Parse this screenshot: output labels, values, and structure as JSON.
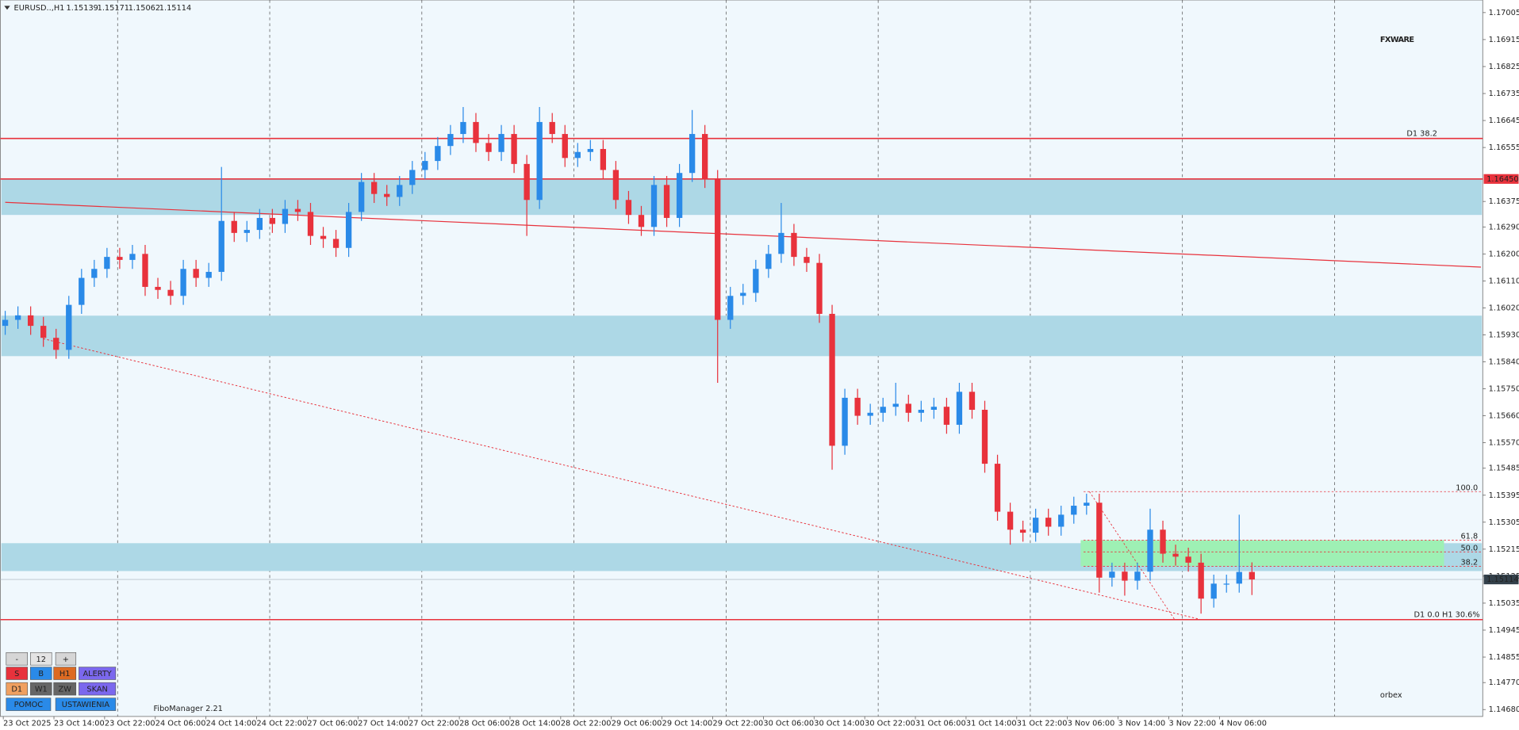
{
  "chart_data": {
    "type": "candlestick",
    "header": {
      "symbol": "EURUSD..,H1",
      "ohlc": [
        1.15139,
        1.15171,
        1.15062,
        1.15114
      ]
    },
    "ylim": [
      1.14657,
      1.17047
    ],
    "yticks": [
      1.17005,
      1.16915,
      1.16825,
      1.16735,
      1.16645,
      1.16555,
      1.16375,
      {
        "value": 1.1629,
        "label": "1.16290"
      },
      {
        "value": 1.162,
        "label": "1.16200"
      },
      {
        "value": 1.1611,
        "label": "1.16110"
      },
      {
        "value": 1.1602,
        "label": "1.16020"
      },
      {
        "value": 1.1593,
        "label": "1.15930"
      },
      {
        "value": 1.1584,
        "label": "1.15840"
      },
      {
        "value": 1.1575,
        "label": "1.15750"
      },
      {
        "value": 1.1566,
        "label": "1.15660"
      },
      {
        "value": 1.1557,
        "label": "1.15570"
      },
      1.15485,
      1.15395,
      1.15305,
      1.15215,
      1.15125,
      1.15035,
      1.14945,
      1.14855,
      {
        "value": 1.1477,
        "label": "1.14770"
      },
      {
        "value": 1.1468,
        "label": "1.14680"
      }
    ],
    "xtick_labels": [
      "23 Oct 2025",
      "23 Oct 14:00",
      "23 Oct 22:00",
      "24 Oct 06:00",
      "24 Oct 14:00",
      "24 Oct 22:00",
      "27 Oct 06:00",
      "27 Oct 14:00",
      "27 Oct 22:00",
      "28 Oct 06:00",
      "28 Oct 14:00",
      "28 Oct 22:00",
      "29 Oct 06:00",
      "29 Oct 14:00",
      "29 Oct 22:00",
      "30 Oct 06:00",
      "30 Oct 14:00",
      "30 Oct 22:00",
      "31 Oct 06:00",
      "31 Oct 14:00",
      "31 Oct 22:00",
      "3 Nov 06:00",
      "3 Nov 14:00",
      "3 Nov 22:00",
      "4 Nov 06:00"
    ],
    "bull_color": "#2a8ae8",
    "bear_color": "#e8323c",
    "candles": [
      [
        1.1596,
        1.1601,
        1.1593,
        1.1598
      ],
      [
        1.1598,
        1.16025,
        1.1595,
        1.15995
      ],
      [
        1.15995,
        1.16025,
        1.1593,
        1.1596
      ],
      [
        1.1596,
        1.1599,
        1.1589,
        1.1592
      ],
      [
        1.1592,
        1.1595,
        1.1585,
        1.1588
      ],
      [
        1.1588,
        1.1606,
        1.1585,
        1.1603
      ],
      [
        1.1603,
        1.1615,
        1.16,
        1.1612
      ],
      [
        1.1612,
        1.1618,
        1.1609,
        1.1615
      ],
      [
        1.1615,
        1.1622,
        1.1612,
        1.1619
      ],
      [
        1.1619,
        1.1622,
        1.1615,
        1.1618
      ],
      [
        1.1618,
        1.1623,
        1.1615,
        1.162
      ],
      [
        1.162,
        1.1623,
        1.1606,
        1.1609
      ],
      [
        1.1609,
        1.1612,
        1.1605,
        1.1608
      ],
      [
        1.1608,
        1.1611,
        1.1603,
        1.1606
      ],
      [
        1.1606,
        1.1618,
        1.1603,
        1.1615
      ],
      [
        1.1615,
        1.1618,
        1.1609,
        1.1612
      ],
      [
        1.1612,
        1.1617,
        1.1609,
        1.1614
      ],
      [
        1.1614,
        1.1649,
        1.1611,
        1.1631
      ],
      [
        1.1631,
        1.1634,
        1.1624,
        1.1627
      ],
      [
        1.1627,
        1.1631,
        1.1624,
        1.1628
      ],
      [
        1.1628,
        1.1635,
        1.1625,
        1.1632
      ],
      [
        1.1632,
        1.1635,
        1.1627,
        1.163
      ],
      [
        1.163,
        1.1638,
        1.1627,
        1.1635
      ],
      [
        1.1635,
        1.1638,
        1.1631,
        1.1634
      ],
      [
        1.1634,
        1.1637,
        1.1623,
        1.1626
      ],
      [
        1.1626,
        1.1629,
        1.1622,
        1.1625
      ],
      [
        1.1625,
        1.1628,
        1.1619,
        1.1622
      ],
      [
        1.1622,
        1.1637,
        1.1619,
        1.1634
      ],
      [
        1.1634,
        1.1647,
        1.1631,
        1.1644
      ],
      [
        1.1644,
        1.1647,
        1.1637,
        1.164
      ],
      [
        1.164,
        1.1643,
        1.1636,
        1.1639
      ],
      [
        1.1639,
        1.1646,
        1.1636,
        1.1643
      ],
      [
        1.1643,
        1.1651,
        1.164,
        1.1648
      ],
      [
        1.1648,
        1.1654,
        1.1645,
        1.1651
      ],
      [
        1.1651,
        1.1659,
        1.1648,
        1.1656
      ],
      [
        1.1656,
        1.1663,
        1.1653,
        1.166
      ],
      [
        1.166,
        1.1669,
        1.1657,
        1.1664
      ],
      [
        1.1664,
        1.1667,
        1.1654,
        1.1657
      ],
      [
        1.1657,
        1.166,
        1.1651,
        1.1654
      ],
      [
        1.1654,
        1.1663,
        1.1651,
        1.166
      ],
      [
        1.166,
        1.1663,
        1.1647,
        1.165
      ],
      [
        1.165,
        1.1653,
        1.1626,
        1.1638
      ],
      [
        1.1638,
        1.1669,
        1.1635,
        1.1664
      ],
      [
        1.1664,
        1.1667,
        1.1657,
        1.166
      ],
      [
        1.166,
        1.1663,
        1.1649,
        1.1652
      ],
      [
        1.1652,
        1.1657,
        1.1649,
        1.1654
      ],
      [
        1.1654,
        1.1658,
        1.1651,
        1.1655
      ],
      [
        1.1655,
        1.1658,
        1.1645,
        1.1648
      ],
      [
        1.1648,
        1.1651,
        1.1635,
        1.1638
      ],
      [
        1.1638,
        1.1641,
        1.163,
        1.1633
      ],
      [
        1.1633,
        1.1636,
        1.1626,
        1.1629
      ],
      [
        1.1629,
        1.1646,
        1.1626,
        1.1643
      ],
      [
        1.1643,
        1.1646,
        1.1629,
        1.1632
      ],
      [
        1.1632,
        1.165,
        1.1629,
        1.1647
      ],
      [
        1.1647,
        1.1668,
        1.1644,
        1.166
      ],
      [
        1.166,
        1.1663,
        1.1642,
        1.1645
      ],
      [
        1.1645,
        1.1648,
        1.1577,
        1.1598
      ],
      [
        1.1598,
        1.1609,
        1.1595,
        1.1606
      ],
      [
        1.1606,
        1.161,
        1.1603,
        1.1607
      ],
      [
        1.1607,
        1.1618,
        1.1604,
        1.1615
      ],
      [
        1.1615,
        1.1623,
        1.1612,
        1.162
      ],
      [
        1.162,
        1.1637,
        1.1617,
        1.1627
      ],
      [
        1.1627,
        1.163,
        1.1616,
        1.1619
      ],
      [
        1.1619,
        1.1622,
        1.1614,
        1.1617
      ],
      [
        1.1617,
        1.162,
        1.1597,
        1.16
      ],
      [
        1.16,
        1.1603,
        1.1548,
        1.1556
      ],
      [
        1.1556,
        1.1575,
        1.1553,
        1.1572
      ],
      [
        1.1572,
        1.1575,
        1.1563,
        1.1566
      ],
      [
        1.1566,
        1.157,
        1.1563,
        1.1567
      ],
      [
        1.1567,
        1.1572,
        1.1564,
        1.1569
      ],
      [
        1.1569,
        1.1577,
        1.1566,
        1.157
      ],
      [
        1.157,
        1.1573,
        1.1564,
        1.1567
      ],
      [
        1.1567,
        1.1571,
        1.1564,
        1.1568
      ],
      [
        1.1568,
        1.1572,
        1.1565,
        1.1569
      ],
      [
        1.1569,
        1.1572,
        1.156,
        1.1563
      ],
      [
        1.1563,
        1.1577,
        1.156,
        1.1574
      ],
      [
        1.1574,
        1.1577,
        1.1565,
        1.1568
      ],
      [
        1.1568,
        1.1571,
        1.1547,
        1.155
      ],
      [
        1.155,
        1.1553,
        1.1531,
        1.1534
      ],
      [
        1.1534,
        1.1537,
        1.1523,
        1.1528
      ],
      [
        1.1528,
        1.1531,
        1.1524,
        1.1527
      ],
      [
        1.1527,
        1.1535,
        1.1524,
        1.1532
      ],
      [
        1.1532,
        1.1535,
        1.1526,
        1.1529
      ],
      [
        1.1529,
        1.1536,
        1.1526,
        1.1533
      ],
      [
        1.1533,
        1.1539,
        1.153,
        1.1536
      ],
      [
        1.1536,
        1.154,
        1.1533,
        1.1537
      ],
      [
        1.1537,
        1.154,
        1.1507,
        1.1512
      ],
      [
        1.1512,
        1.1517,
        1.1509,
        1.1514
      ],
      [
        1.1514,
        1.1517,
        1.1506,
        1.1511
      ],
      [
        1.1511,
        1.1517,
        1.1508,
        1.1514
      ],
      [
        1.1514,
        1.1535,
        1.1511,
        1.1528
      ],
      [
        1.1528,
        1.1531,
        1.1517,
        1.152
      ],
      [
        1.152,
        1.1523,
        1.1516,
        1.1519
      ],
      [
        1.1519,
        1.1522,
        1.1514,
        1.1517
      ],
      [
        1.1517,
        1.152,
        1.15,
        1.1505
      ],
      [
        1.1505,
        1.1513,
        1.1502,
        1.151
      ],
      [
        1.151,
        1.1513,
        1.1507,
        1.151
      ],
      [
        1.151,
        1.1533,
        1.1507,
        1.15139
      ],
      [
        1.15139,
        1.15171,
        1.15062,
        1.15114
      ]
    ],
    "zones": [
      [
        1.1633,
        1.1645
      ],
      [
        1.15859,
        1.15994
      ],
      [
        1.15142,
        1.15235
      ]
    ],
    "zone_color": "#add8e6",
    "levels": [
      {
        "value": 1.16585,
        "label": "D1 38.2"
      },
      {
        "value": 1.1498,
        "label": "D1 0.0   H1 30.6%"
      }
    ],
    "price_tag": {
      "value": 1.1645,
      "label": "1.16450"
    },
    "level_color": "#e8323c",
    "bid": 1.15114,
    "trendlines": [
      {
        "x": [
          0,
          116
        ],
        "y": [
          1.16372,
          1.16156
        ],
        "dash": false
      },
      {
        "x": [
          3,
          94
        ],
        "y": [
          1.15917,
          1.1498
        ],
        "dash": true
      }
    ],
    "fibo": [
      {
        "value": 1.15407,
        "label": "100.0"
      },
      {
        "value": 1.15245,
        "label": "61.8"
      },
      {
        "value": 1.15206,
        "label": "50.0"
      },
      {
        "value": 1.15158,
        "label": "38.2"
      }
    ],
    "fibo_zone_color": "#9ef0b4"
  },
  "panel": {
    "buttons": [
      [
        {
          "label": "-",
          "color": "#d6d6d6"
        },
        {
          "label": "12",
          "color": "#e4e4e4"
        },
        {
          "label": "+",
          "color": "#d6d6d6"
        }
      ],
      [
        {
          "label": "S",
          "color": "#e8323c"
        },
        {
          "label": "B",
          "color": "#2a8ae8"
        },
        {
          "label": "H1",
          "color": "#dd6a22"
        },
        {
          "label": "ALERTY",
          "color": "#7b68ee"
        }
      ],
      [
        {
          "label": "D1",
          "color": "#f0a060"
        },
        {
          "label": "W1",
          "color": "#666666"
        },
        {
          "label": "ZW",
          "color": "#666666"
        },
        {
          "label": "SKAN",
          "color": "#7b68ee"
        }
      ],
      [
        {
          "label": "POMOC",
          "color": "#2a8ae8"
        },
        {
          "label": "USTAWIENIA",
          "color": "#2a8ae8"
        }
      ]
    ],
    "plugin": "FiboManager 2.21"
  },
  "logos": {
    "top": "FXWARE",
    "bottom": "orbex"
  }
}
